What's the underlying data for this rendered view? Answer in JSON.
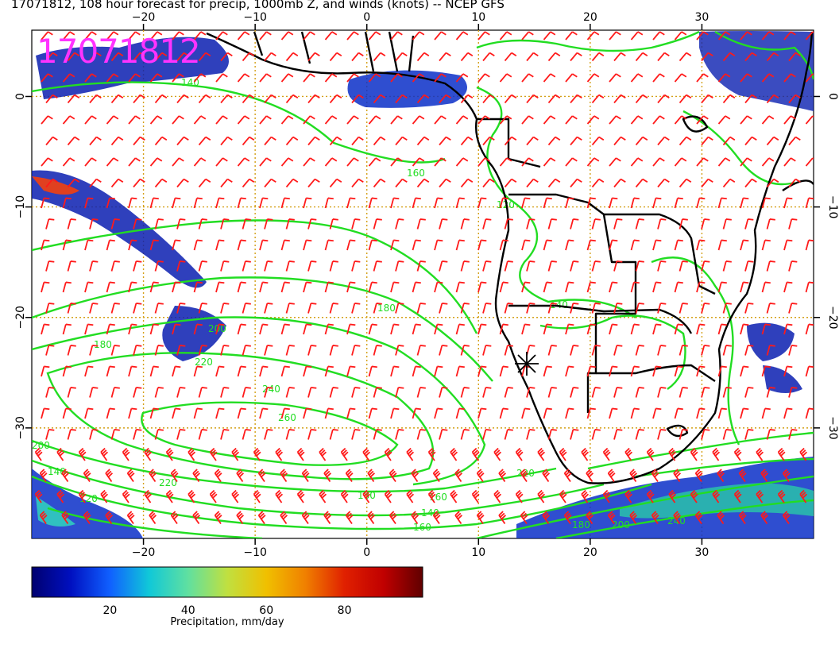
{
  "title": "17071812, 108 hour forecast for precip, 1000mb Z, and winds (knots) -- NCEP GFS",
  "stamp": "17071812",
  "map": {
    "lon_range": [
      -30,
      40
    ],
    "lat_range": [
      -40,
      6
    ],
    "lon_ticks": [
      -20,
      -10,
      0,
      10,
      20,
      30
    ],
    "lat_ticks": [
      0,
      -10,
      -20,
      -30
    ],
    "lon_tick_labels": [
      "−20",
      "−10",
      "0",
      "10",
      "20",
      "30"
    ],
    "lat_tick_labels": [
      "0",
      "−10",
      "−20",
      "−30"
    ],
    "grid": "dotted",
    "colors": {
      "coastline": "#000000",
      "height_contours": "#22dd22",
      "wind_barbs": "#ff1a1a",
      "grid": "#d4a017",
      "stamp": "#ff33ff"
    },
    "contour_labels": [
      "140",
      "160",
      "180",
      "200",
      "220",
      "240",
      "260",
      "180",
      "200",
      "220",
      "140",
      "120",
      "160",
      "140",
      "160",
      "180",
      "200",
      "220",
      "240",
      "180",
      "140",
      "120"
    ],
    "marker": {
      "name": "station-marker",
      "lon": 14.5,
      "lat": -23
    }
  },
  "colorbar": {
    "ticks": [
      20,
      40,
      60,
      80
    ],
    "range": [
      0,
      100
    ],
    "label": "Precipitation, mm/day",
    "colors": [
      "#000070",
      "#0010c0",
      "#1060ff",
      "#10c8d8",
      "#60e0a0",
      "#c0e040",
      "#f0c000",
      "#f08000",
      "#e02000",
      "#c00000",
      "#600000"
    ]
  }
}
